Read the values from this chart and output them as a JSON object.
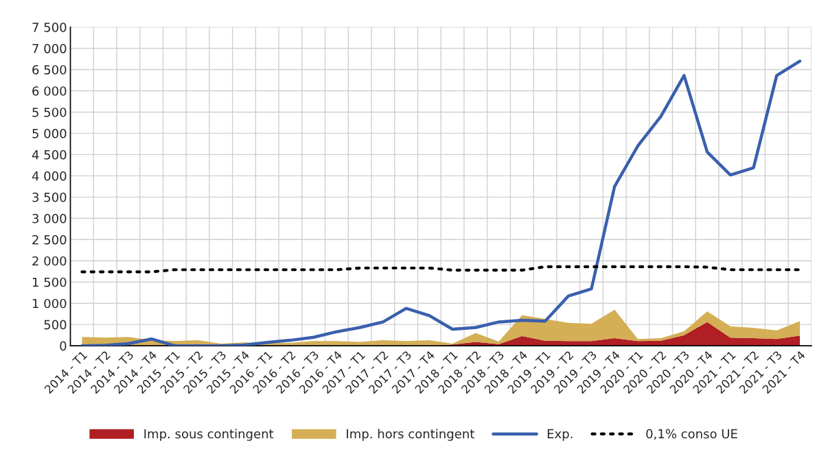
{
  "chart_data": {
    "type": "area",
    "stacked": true,
    "categories": [
      "2014 - T1",
      "2014 - T2",
      "2014 - T3",
      "2014 - T4",
      "2015 - T1",
      "2015 - T2",
      "2015 - T3",
      "2015 - T4",
      "2016 - T1",
      "2016 - T2",
      "2016 - T3",
      "2016 - T4",
      "2017 - T1",
      "2017 - T2",
      "2017 - T3",
      "2017 - T4",
      "2018 - T1",
      "2018 - T2",
      "2018 - T3",
      "2018 - T4",
      "2019 - T1",
      "2019 - T2",
      "2019 - T3",
      "2019 - T4",
      "2020 - T1",
      "2020 - T2",
      "2020 - T3",
      "2020 - T4",
      "2021 - T1",
      "2021 - T2",
      "2021 - T3",
      "2021 - T4"
    ],
    "series": [
      {
        "name": "Imp. sous contingent",
        "color": "#b01f24",
        "values": [
          0,
          0,
          0,
          0,
          0,
          0,
          0,
          0,
          0,
          0,
          0,
          0,
          0,
          0,
          0,
          0,
          30,
          90,
          40,
          230,
          120,
          110,
          110,
          180,
          110,
          120,
          250,
          560,
          190,
          180,
          160,
          240
        ]
      },
      {
        "name": "Imp. hors contingent",
        "color": "#d4af55",
        "values": [
          210,
          190,
          210,
          130,
          110,
          130,
          50,
          80,
          60,
          70,
          110,
          110,
          90,
          130,
          110,
          130,
          20,
          210,
          60,
          490,
          510,
          430,
          410,
          670,
          50,
          60,
          90,
          250,
          270,
          240,
          200,
          340
        ]
      },
      {
        "name": "Exp.",
        "type": "line",
        "color": "#3a5fad",
        "line_style": "solid",
        "values": [
          0,
          10,
          50,
          160,
          0,
          0,
          0,
          20,
          80,
          130,
          200,
          330,
          430,
          560,
          880,
          710,
          390,
          430,
          560,
          600,
          580,
          1170,
          1340,
          3750,
          4700,
          5400,
          6360,
          4560,
          4020,
          4190,
          6360,
          6700
        ]
      },
      {
        "name": "0,1% conso UE",
        "type": "line",
        "color": "#000000",
        "line_style": "dotted",
        "values": [
          1740,
          1740,
          1740,
          1740,
          1790,
          1790,
          1790,
          1790,
          1790,
          1790,
          1790,
          1790,
          1830,
          1830,
          1830,
          1830,
          1780,
          1780,
          1780,
          1780,
          1860,
          1860,
          1860,
          1860,
          1860,
          1860,
          1860,
          1850,
          1790,
          1790,
          1790,
          1790
        ]
      }
    ],
    "ylim": [
      0,
      7500
    ],
    "yticks": [
      0,
      500,
      {
        "value": 1000,
        "label": "1 000"
      },
      {
        "value": 1500,
        "label": "1 500"
      },
      {
        "value": 2000,
        "label": "2 000"
      },
      {
        "value": 2500,
        "label": "2 500"
      },
      {
        "value": 3000,
        "label": "3 000"
      },
      {
        "value": 3500,
        "label": "3 500"
      },
      {
        "value": 4000,
        "label": "4 000"
      },
      {
        "value": 4500,
        "label": "4 500"
      },
      {
        "value": 5000,
        "label": "5 000"
      },
      {
        "value": 5500,
        "label": "5 500"
      },
      {
        "value": 6000,
        "label": "6 000"
      },
      {
        "value": 6500,
        "label": "6 500"
      },
      {
        "value": 7000,
        "label": "7 000"
      },
      {
        "value": 7500,
        "label": "7 500"
      }
    ],
    "grid": true,
    "legend": "bottom"
  }
}
